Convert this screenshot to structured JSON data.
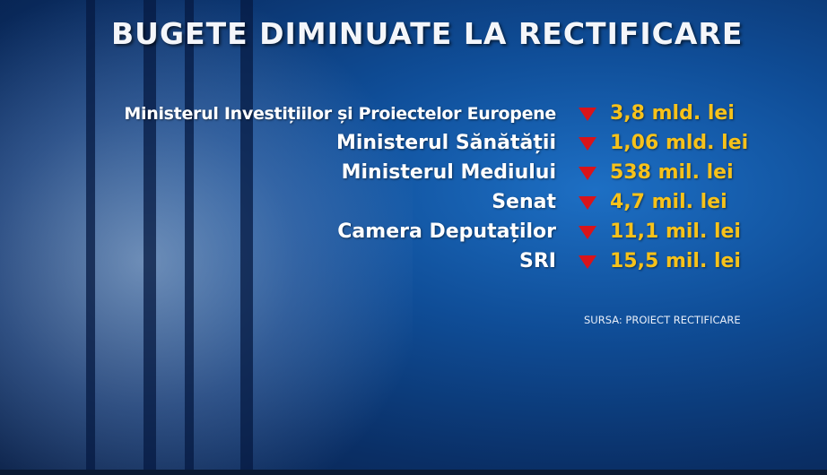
{
  "title": "BUGETE DIMINUATE LA RECTIFICARE",
  "rows": [
    {
      "label": "Ministerul Investițiilor și Proiectelor Europene",
      "value": "3,8 mld. lei"
    },
    {
      "label": "Ministerul Sănătății",
      "value": "1,06 mld. lei"
    },
    {
      "label": "Ministerul Mediului",
      "value": "538 mil. lei"
    },
    {
      "label": "Senat",
      "value": "4,7 mil. lei"
    },
    {
      "label": "Camera Deputaților",
      "value": "11,1 mil. lei"
    },
    {
      "label": "SRI",
      "value": "15,5 mil. lei"
    }
  ],
  "source": "SURSA: PROIECT RECTIFICARE"
}
